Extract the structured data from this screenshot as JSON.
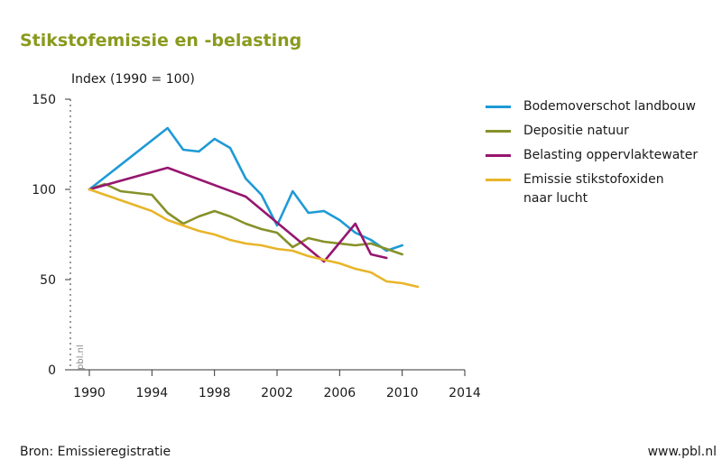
{
  "header": {
    "title": "Stikstofemissie en -belasting"
  },
  "footer": {
    "source": "Bron: Emissieregistratie",
    "site": "www.pbl.nl"
  },
  "watermark": "pbl.nl",
  "chart_data": {
    "type": "line",
    "title": "Stikstofemissie en -belasting",
    "ylabel": "Index (1990 = 100)",
    "xlabel": "",
    "xlim": [
      1990,
      2014
    ],
    "ylim": [
      0,
      150
    ],
    "xticks": [
      1990,
      1994,
      1998,
      2002,
      2006,
      2010,
      2014
    ],
    "yticks": [
      0,
      50,
      100,
      150
    ],
    "grid": false,
    "legend_position": "right",
    "series": [
      {
        "name": "Bodemoverschot landbouw",
        "color": "#1e9ad6",
        "x": [
          1990,
          1995,
          1996,
          1997,
          1998,
          1999,
          2000,
          2001,
          2002,
          2003,
          2004,
          2005,
          2006,
          2007,
          2008,
          2009,
          2010
        ],
        "y": [
          100,
          134,
          122,
          121,
          128,
          123,
          106,
          97,
          80,
          99,
          87,
          88,
          83,
          76,
          72,
          66,
          69
        ]
      },
      {
        "name": "Depositie natuur",
        "color": "#86912a",
        "x": [
          1990,
          1991,
          1992,
          1993,
          1994,
          1995,
          1996,
          1997,
          1998,
          1999,
          2000,
          2001,
          2002,
          2003,
          2004,
          2005,
          2006,
          2007,
          2008,
          2009,
          2010
        ],
        "y": [
          100,
          103,
          99,
          98,
          97,
          87,
          81,
          85,
          88,
          85,
          81,
          78,
          76,
          68,
          73,
          71,
          70,
          69,
          70,
          67,
          64
        ]
      },
      {
        "name": "Belasting oppervlaktewater",
        "color": "#96166f",
        "x": [
          1990,
          1995,
          2000,
          2005,
          2007,
          2008,
          2009
        ],
        "y": [
          100,
          112,
          96,
          60,
          81,
          64,
          62
        ]
      },
      {
        "name": "Emissie stikstofoxiden naar lucht",
        "color": "#e8b52a",
        "x": [
          1990,
          1991,
          1992,
          1993,
          1994,
          1995,
          1996,
          1997,
          1998,
          1999,
          2000,
          2001,
          2002,
          2003,
          2004,
          2005,
          2006,
          2007,
          2008,
          2009,
          2010,
          2011
        ],
        "y": [
          100,
          97,
          94,
          91,
          88,
          83,
          80,
          77,
          75,
          72,
          70,
          69,
          67,
          66,
          63,
          61,
          59,
          56,
          54,
          49,
          48,
          46
        ]
      }
    ]
  }
}
